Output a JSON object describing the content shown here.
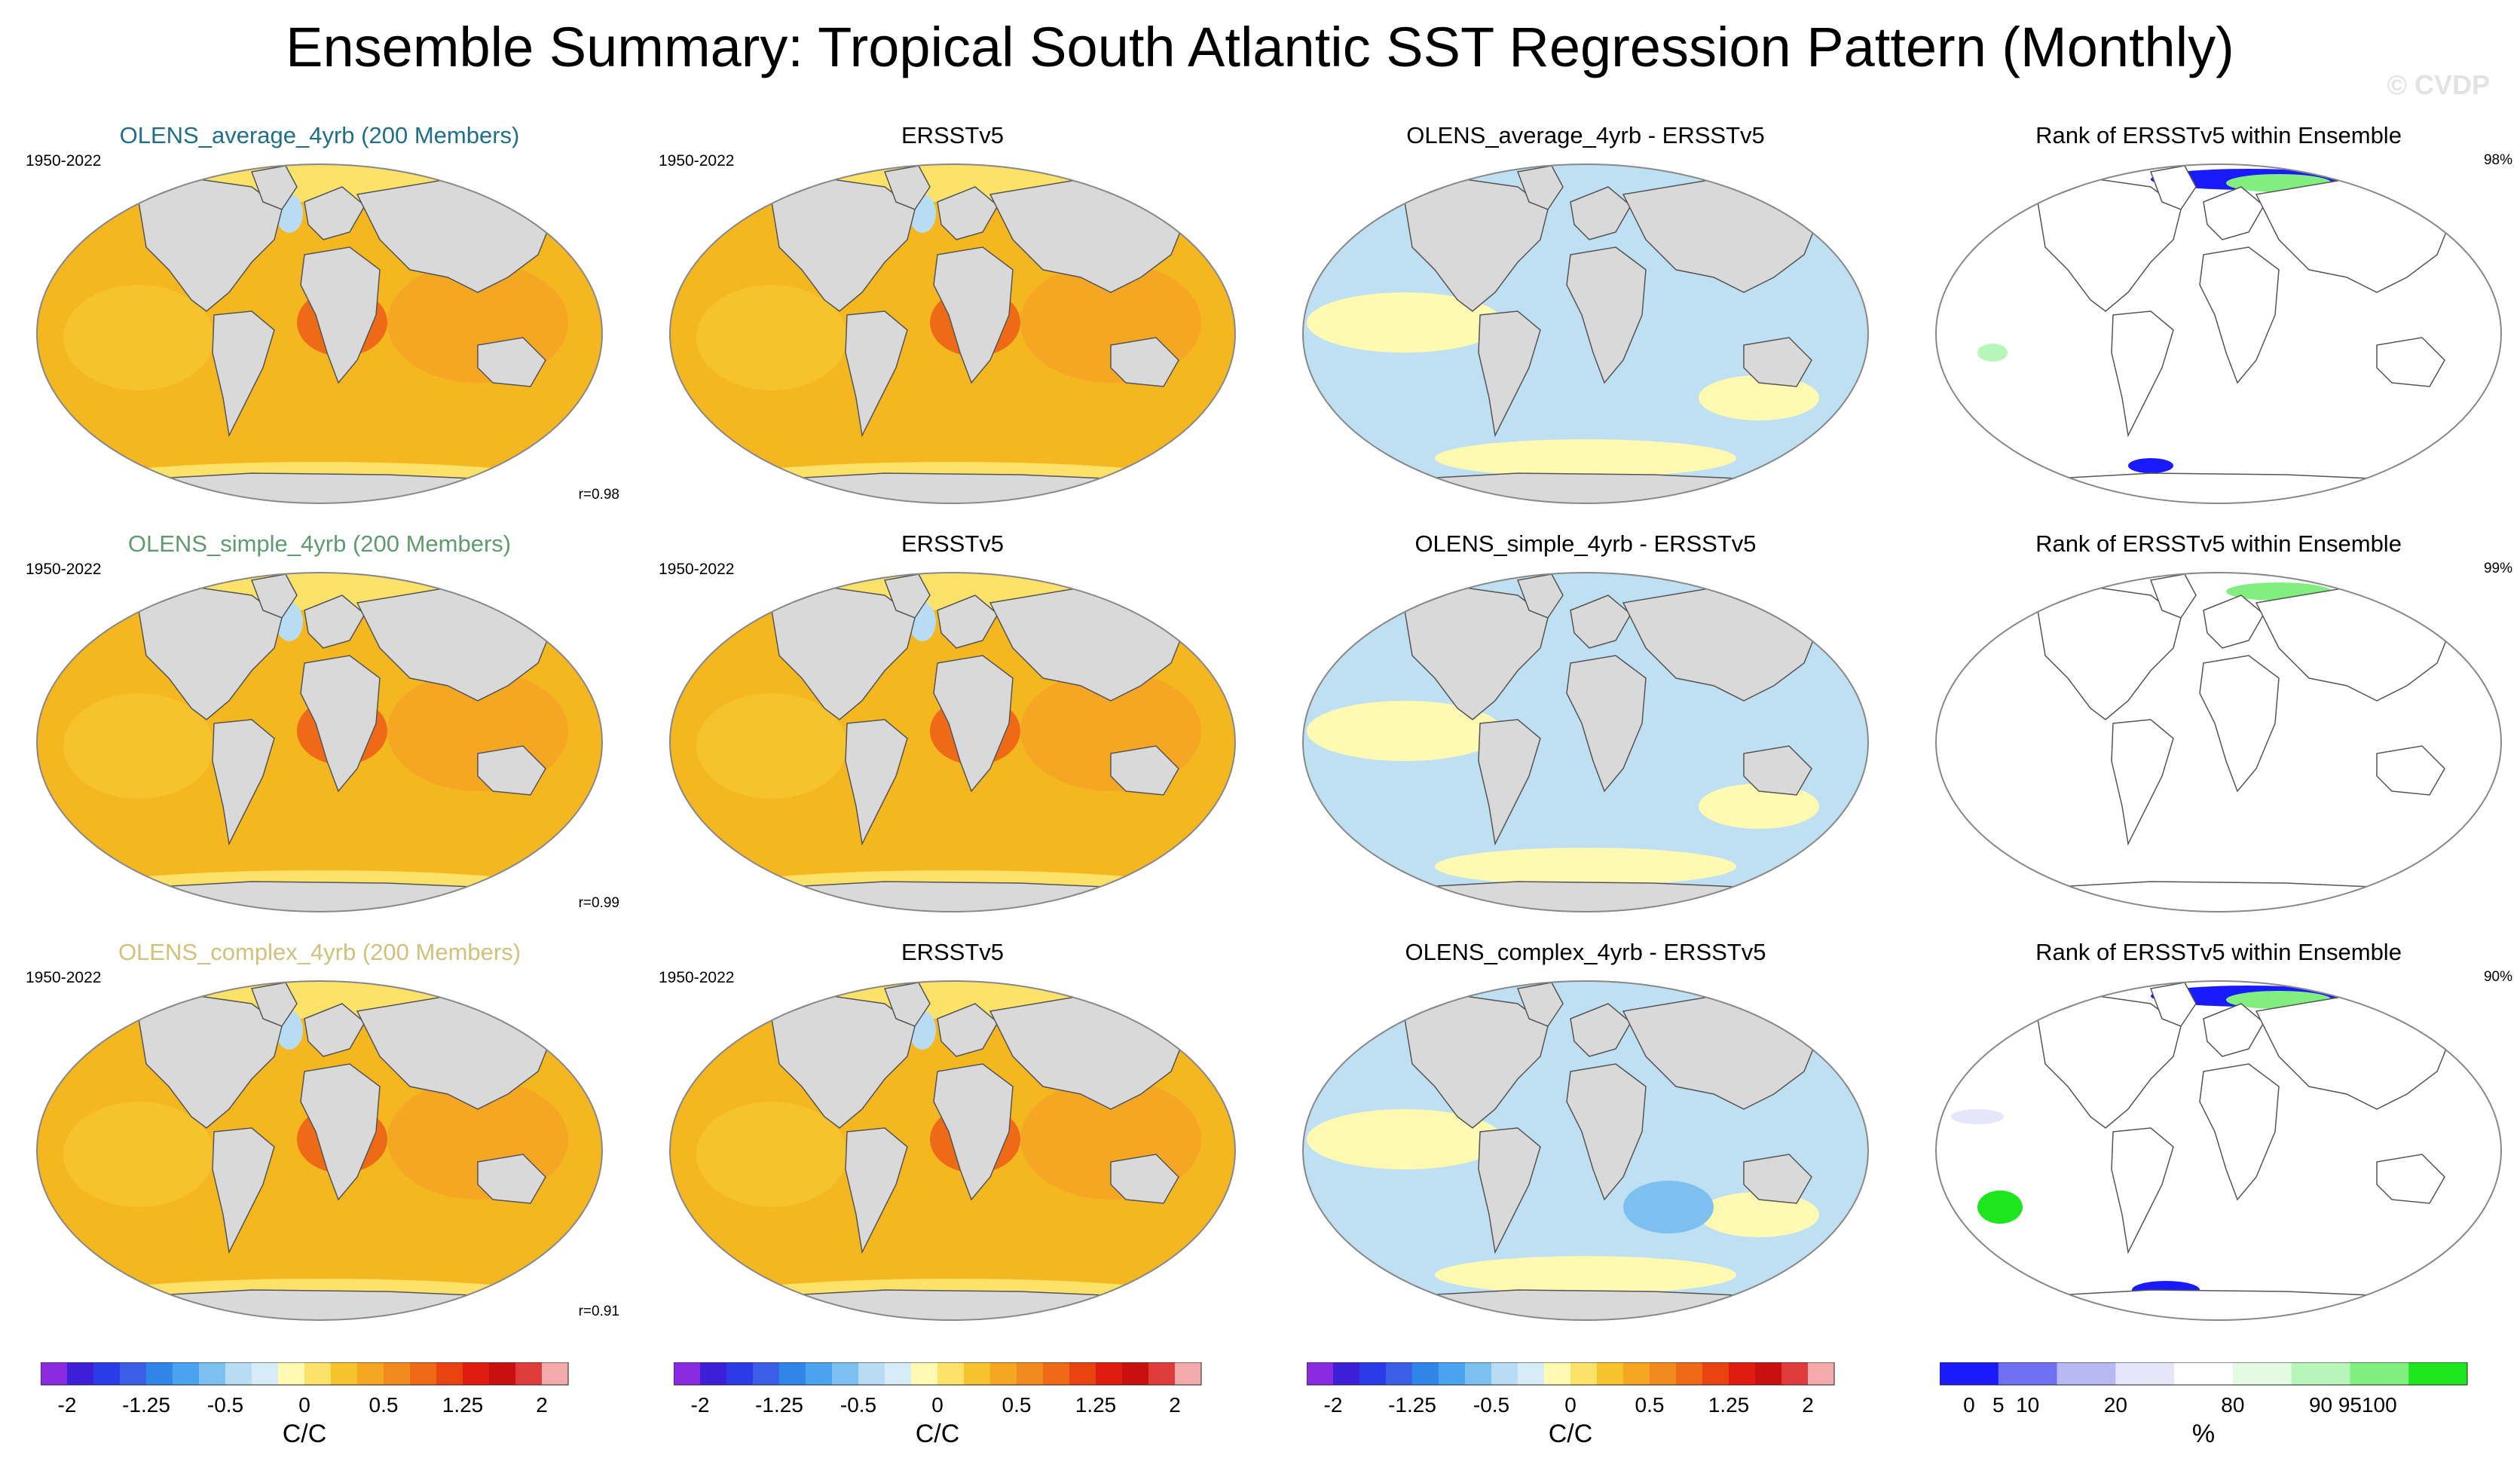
{
  "figure": {
    "title": "Ensemble Summary: Tropical South Atlantic SST Regression Pattern (Monthly)",
    "watermark": "© CVDP",
    "colors": {
      "land": "#d9d9d9",
      "ocean_default": "#f5b71f",
      "row_title_colors": [
        "#1f6f8b",
        "#5f9b6e",
        "#d2c17a"
      ]
    }
  },
  "chart_data": [
    {
      "type": "heatmap",
      "panel": "row1-col1",
      "title": "OLENS_average_4yrb (200 Members)",
      "period": "1950-2022",
      "annotation": "r=0.98",
      "units": "C/C",
      "range": [
        -2,
        2
      ]
    },
    {
      "type": "heatmap",
      "panel": "row1-col2",
      "title": "ERSSTv5",
      "period": "1950-2022",
      "annotation": "",
      "units": "C/C",
      "range": [
        -2,
        2
      ]
    },
    {
      "type": "heatmap",
      "panel": "row1-col3",
      "title": "OLENS_average_4yrb - ERSSTv5",
      "period": "",
      "annotation": "",
      "units": "C/C",
      "range": [
        -2,
        2
      ]
    },
    {
      "type": "heatmap",
      "panel": "row1-col4",
      "title": "Rank of ERSSTv5 within Ensemble",
      "period": "",
      "annotation": "98%",
      "units": "%",
      "range": [
        0,
        100
      ]
    },
    {
      "type": "heatmap",
      "panel": "row2-col1",
      "title": "OLENS_simple_4yrb (200 Members)",
      "period": "1950-2022",
      "annotation": "r=0.99",
      "units": "C/C",
      "range": [
        -2,
        2
      ]
    },
    {
      "type": "heatmap",
      "panel": "row2-col2",
      "title": "ERSSTv5",
      "period": "1950-2022",
      "annotation": "",
      "units": "C/C",
      "range": [
        -2,
        2
      ]
    },
    {
      "type": "heatmap",
      "panel": "row2-col3",
      "title": "OLENS_simple_4yrb - ERSSTv5",
      "period": "",
      "annotation": "",
      "units": "C/C",
      "range": [
        -2,
        2
      ]
    },
    {
      "type": "heatmap",
      "panel": "row2-col4",
      "title": "Rank of ERSSTv5 within Ensemble",
      "period": "",
      "annotation": "99%",
      "units": "%",
      "range": [
        0,
        100
      ]
    },
    {
      "type": "heatmap",
      "panel": "row3-col1",
      "title": "OLENS_complex_4yrb (200 Members)",
      "period": "1950-2022",
      "annotation": "r=0.91",
      "units": "C/C",
      "range": [
        -2,
        2
      ]
    },
    {
      "type": "heatmap",
      "panel": "row3-col2",
      "title": "ERSSTv5",
      "period": "1950-2022",
      "annotation": "",
      "units": "C/C",
      "range": [
        -2,
        2
      ]
    },
    {
      "type": "heatmap",
      "panel": "row3-col3",
      "title": "OLENS_complex_4yrb - ERSSTv5",
      "period": "",
      "annotation": "",
      "units": "C/C",
      "range": [
        -2,
        2
      ]
    },
    {
      "type": "heatmap",
      "panel": "row3-col4",
      "title": "Rank of ERSSTv5 within Ensemble",
      "period": "",
      "annotation": "90%",
      "units": "%",
      "range": [
        0,
        100
      ]
    }
  ],
  "colorbars": [
    {
      "units": "C/C",
      "labels": [
        "-2",
        "-1.25",
        "-0.5",
        "0",
        "0.5",
        "1.25",
        "2"
      ],
      "colors": [
        "#8a2be2",
        "#3c1fd6",
        "#2b3be8",
        "#3a5fe6",
        "#2f86e8",
        "#4aa3ee",
        "#7cc0f0",
        "#b7dcf3",
        "#d6ecf6",
        "#fff9b2",
        "#fde26a",
        "#f7c32d",
        "#f5a623",
        "#f08a1c",
        "#ee6a16",
        "#ea4312",
        "#e01b0f",
        "#c81010",
        "#df3b3b",
        "#f3aaaa"
      ],
      "label_positions": [
        1,
        4,
        7,
        10,
        13,
        16,
        19
      ]
    },
    {
      "units": "C/C",
      "labels": [
        "-2",
        "-1.25",
        "-0.5",
        "0",
        "0.5",
        "1.25",
        "2"
      ],
      "colors": [
        "#8a2be2",
        "#3c1fd6",
        "#2b3be8",
        "#3a5fe6",
        "#2f86e8",
        "#4aa3ee",
        "#7cc0f0",
        "#b7dcf3",
        "#d6ecf6",
        "#fff9b2",
        "#fde26a",
        "#f7c32d",
        "#f5a623",
        "#f08a1c",
        "#ee6a16",
        "#ea4312",
        "#e01b0f",
        "#c81010",
        "#df3b3b",
        "#f3aaaa"
      ],
      "label_positions": [
        1,
        4,
        7,
        10,
        13,
        16,
        19
      ]
    },
    {
      "units": "C/C",
      "labels": [
        "-2",
        "-1.25",
        "-0.5",
        "0",
        "0.5",
        "1.25",
        "2"
      ],
      "colors": [
        "#8a2be2",
        "#3c1fd6",
        "#2b3be8",
        "#3a5fe6",
        "#2f86e8",
        "#4aa3ee",
        "#7cc0f0",
        "#b7dcf3",
        "#d6ecf6",
        "#fff9b2",
        "#fde26a",
        "#f7c32d",
        "#f5a623",
        "#f08a1c",
        "#ee6a16",
        "#ea4312",
        "#e01b0f",
        "#c81010",
        "#df3b3b",
        "#f3aaaa"
      ],
      "label_positions": [
        1,
        4,
        7,
        10,
        13,
        16,
        19
      ]
    },
    {
      "units": "%",
      "labels": [
        "0",
        "5",
        "10",
        "20",
        "80",
        "90",
        "95",
        "100"
      ],
      "colors": [
        "#1a1aff",
        "#7070f2",
        "#b8b8f2",
        "#e6e6fa",
        "#ffffff",
        "#e3fbe3",
        "#b8f5b8",
        "#80ef80",
        "#1ee61e"
      ],
      "label_positions": [
        0.5,
        1,
        1.5,
        3,
        5,
        6.5,
        7,
        7.5
      ]
    }
  ]
}
